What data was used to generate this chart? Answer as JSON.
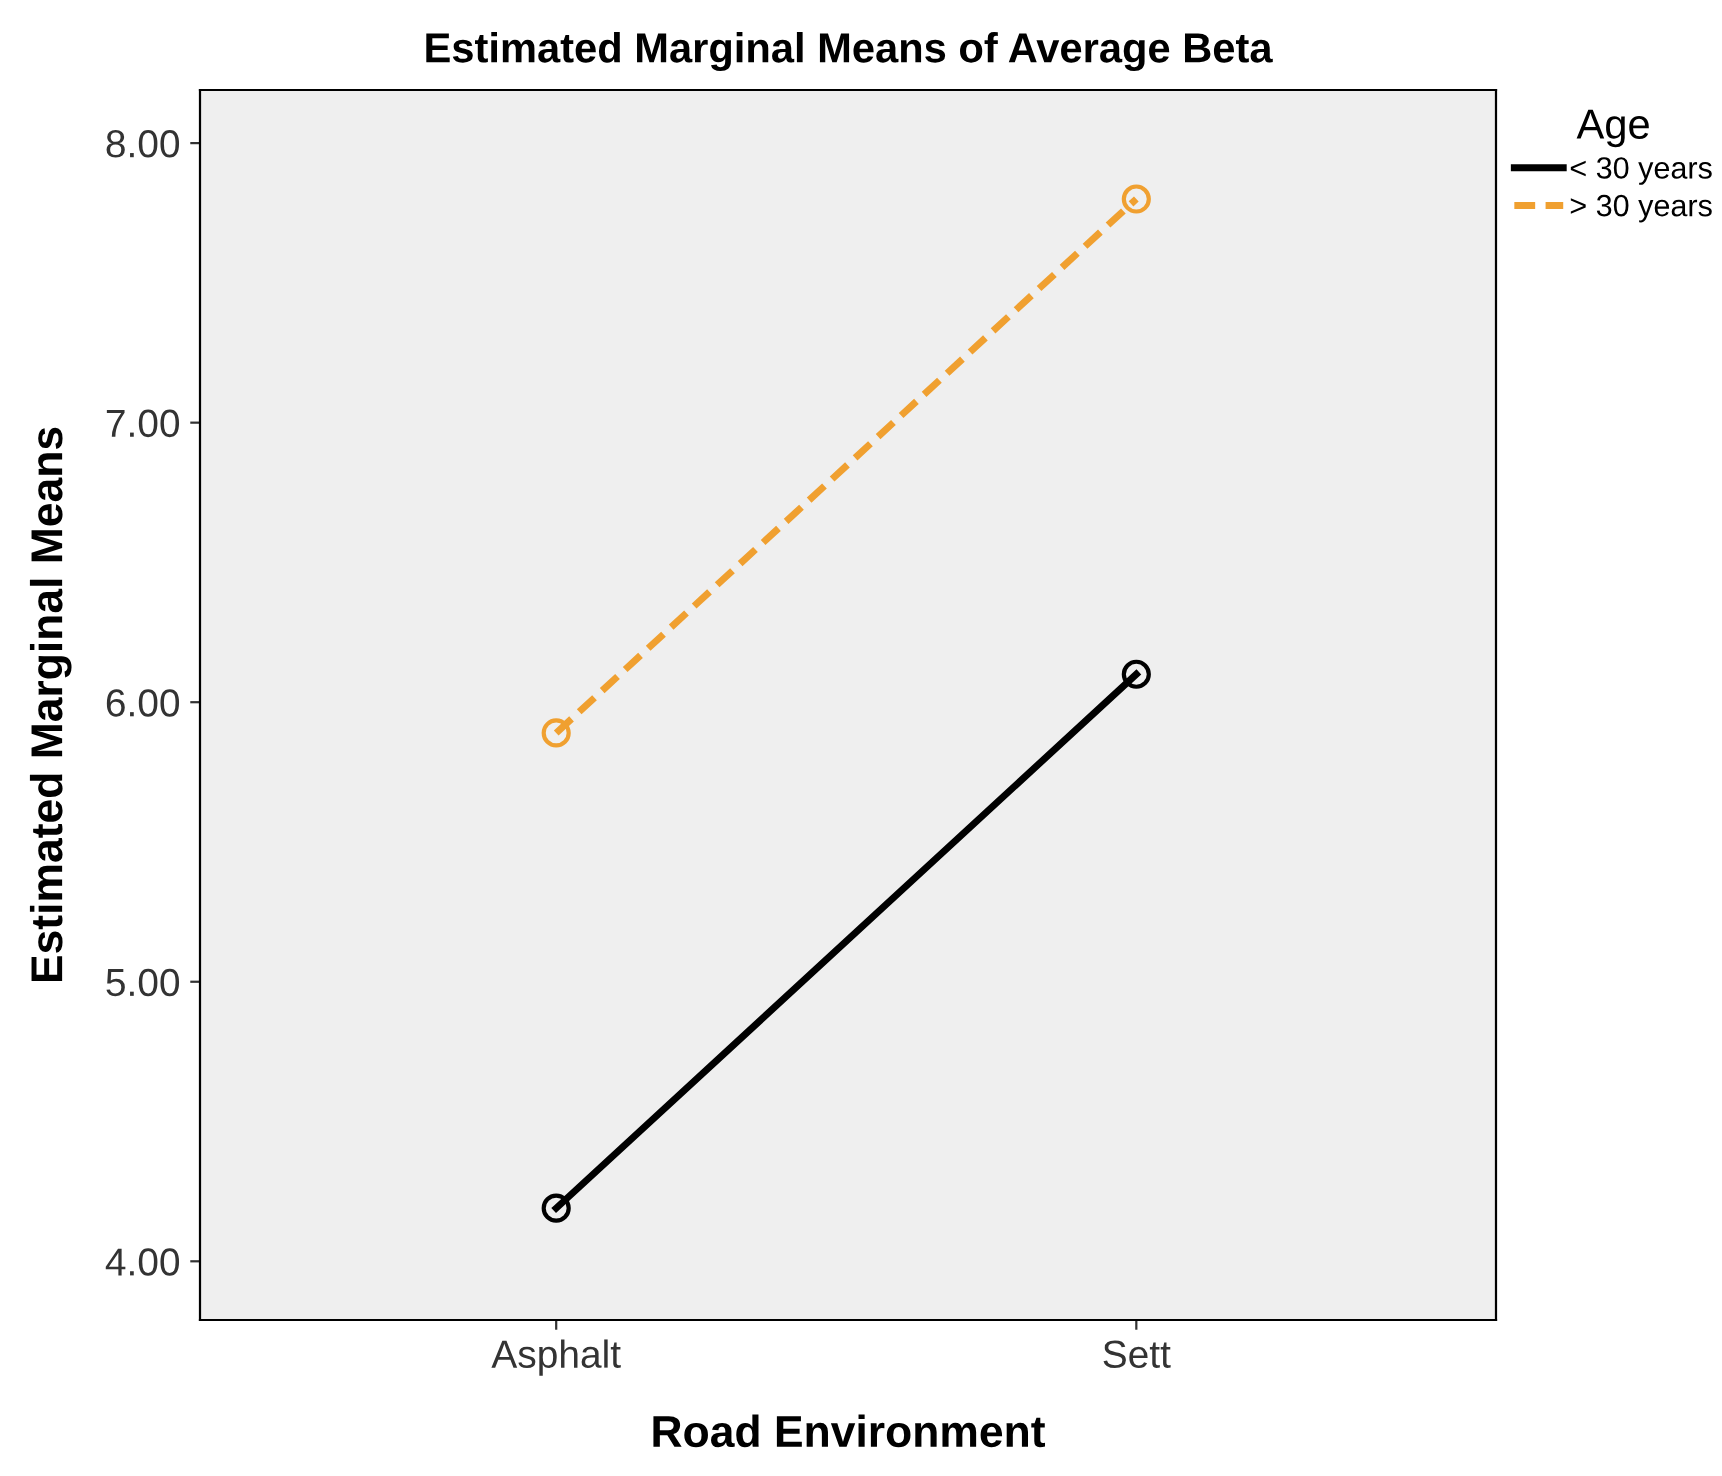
{
  "chart_data": {
    "type": "line",
    "title": "Estimated Marginal Means of Average Beta",
    "xlabel": "Road Environment",
    "ylabel": "Estimated Marginal Means",
    "legend_title": "Age",
    "categories": [
      "Asphalt",
      "Sett"
    ],
    "series": [
      {
        "name": "< 30 years",
        "color": "#000000",
        "values": [
          4.19,
          6.1
        ],
        "line_style": "solid"
      },
      {
        "name": "> 30 years",
        "color": "#f0a030",
        "values": [
          5.89,
          7.8
        ],
        "line_style": "dashed"
      }
    ],
    "ylim": [
      3.79,
      8.19
    ],
    "yticks": [
      {
        "value": 4,
        "label": "4.00"
      },
      {
        "value": 5,
        "label": "5.00"
      },
      {
        "value": 6,
        "label": "6.00"
      },
      {
        "value": 7,
        "label": "7.00"
      },
      {
        "value": 8,
        "label": "8.00"
      }
    ],
    "marker": "circle",
    "grid": false,
    "legend": "top right"
  }
}
